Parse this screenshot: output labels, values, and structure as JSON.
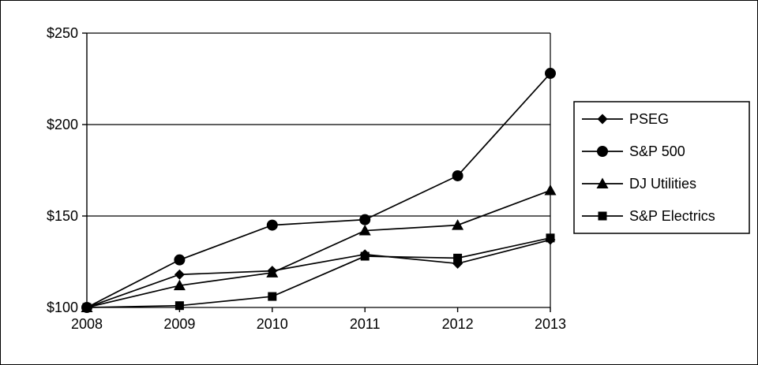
{
  "chart_data": {
    "type": "line",
    "title": "",
    "xlabel": "",
    "ylabel": "",
    "x_labels": [
      "2008",
      "2009",
      "2010",
      "2011",
      "2012",
      "2013"
    ],
    "y_ticks": [
      100,
      150,
      200,
      250
    ],
    "y_tick_labels": [
      "$100",
      "$150",
      "$200",
      "$250"
    ],
    "ylim": [
      100,
      250
    ],
    "grid": "horizontal",
    "legend_position": "right",
    "series": [
      {
        "name": "PSEG",
        "marker": "diamond",
        "values": [
          100,
          118,
          120,
          129,
          124,
          137
        ]
      },
      {
        "name": "S&P 500",
        "marker": "circle",
        "values": [
          100,
          126,
          145,
          148,
          172,
          228
        ]
      },
      {
        "name": "DJ Utilities",
        "marker": "triangle",
        "values": [
          100,
          112,
          119,
          142,
          145,
          164
        ]
      },
      {
        "name": "S&P Electrics",
        "marker": "square",
        "values": [
          100,
          101,
          106,
          128,
          127,
          138
        ]
      }
    ],
    "colors": {
      "line": "#000000",
      "marker": "#000000",
      "grid": "#000000",
      "axis": "#000000",
      "background": "#ffffff",
      "border": "#000000"
    }
  }
}
